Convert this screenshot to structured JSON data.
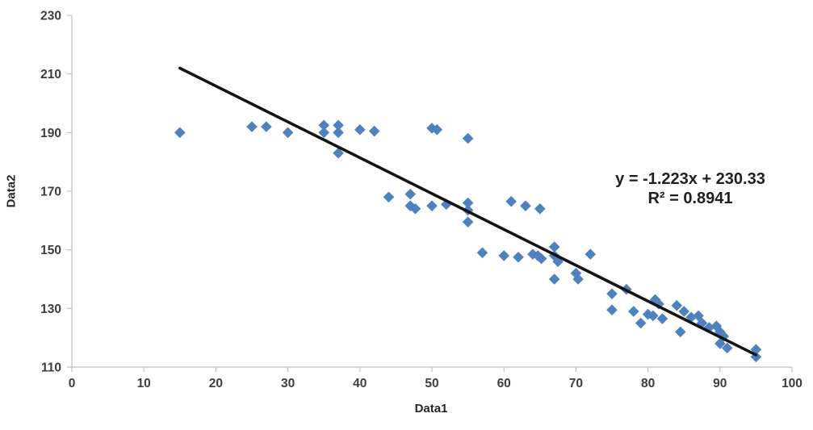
{
  "chart_data": {
    "type": "scatter",
    "title": "",
    "xlabel": "Data1",
    "ylabel": "Data2",
    "xlim": [
      0,
      100
    ],
    "ylim": [
      110,
      230
    ],
    "x_ticks": [
      0,
      10,
      20,
      30,
      40,
      50,
      60,
      70,
      80,
      90,
      100
    ],
    "y_ticks": [
      110,
      130,
      150,
      170,
      190,
      210,
      230
    ],
    "grid": false,
    "legend_position": "none",
    "axis_color": "#bfbfbf",
    "series": [
      {
        "name": "Data2",
        "marker": "diamond",
        "marker_color": "#4F81BD",
        "marker_size": 6.8,
        "points": [
          [
            15,
            190
          ],
          [
            25,
            192
          ],
          [
            27,
            192
          ],
          [
            30,
            190
          ],
          [
            35,
            192.5
          ],
          [
            35,
            190
          ],
          [
            37,
            192.5
          ],
          [
            37,
            190
          ],
          [
            37,
            183
          ],
          [
            40,
            191
          ],
          [
            42,
            190.5
          ],
          [
            50,
            191.5
          ],
          [
            50.7,
            191
          ],
          [
            55,
            188
          ],
          [
            44,
            168
          ],
          [
            47,
            169
          ],
          [
            47,
            165
          ],
          [
            47.7,
            164
          ],
          [
            50,
            165
          ],
          [
            52,
            165.5
          ],
          [
            55,
            166
          ],
          [
            55,
            163.5
          ],
          [
            55,
            159.5
          ],
          [
            61,
            166.5
          ],
          [
            63,
            165
          ],
          [
            65,
            164
          ],
          [
            57,
            149
          ],
          [
            60,
            148
          ],
          [
            62,
            147.5
          ],
          [
            64,
            148.5
          ],
          [
            64.7,
            148
          ],
          [
            65.2,
            147
          ],
          [
            67,
            151
          ],
          [
            67,
            148
          ],
          [
            67.5,
            146
          ],
          [
            67,
            140
          ],
          [
            70,
            142
          ],
          [
            70.3,
            140
          ],
          [
            72,
            148.5
          ],
          [
            75,
            135
          ],
          [
            75,
            129.5
          ],
          [
            77,
            136.5
          ],
          [
            78,
            129
          ],
          [
            79,
            125
          ],
          [
            80,
            128
          ],
          [
            80.7,
            127.5
          ],
          [
            81,
            133
          ],
          [
            81.5,
            131.5
          ],
          [
            82,
            126.5
          ],
          [
            84,
            131
          ],
          [
            85,
            129
          ],
          [
            84.5,
            122
          ],
          [
            86,
            127
          ],
          [
            87,
            127.5
          ],
          [
            87.5,
            125
          ],
          [
            88.5,
            123.5
          ],
          [
            89.5,
            124
          ],
          [
            90,
            122
          ],
          [
            90.5,
            120.5
          ],
          [
            90,
            118
          ],
          [
            91,
            116.5
          ],
          [
            95,
            116
          ],
          [
            95,
            113.5
          ]
        ]
      }
    ],
    "trendline": {
      "equation": "y = -1.223x + 230.33",
      "r_squared": "R² = 0.8941",
      "slope": -1.223,
      "intercept": 230.33,
      "x_start": 15,
      "x_end": 95,
      "color": "#141414"
    }
  }
}
